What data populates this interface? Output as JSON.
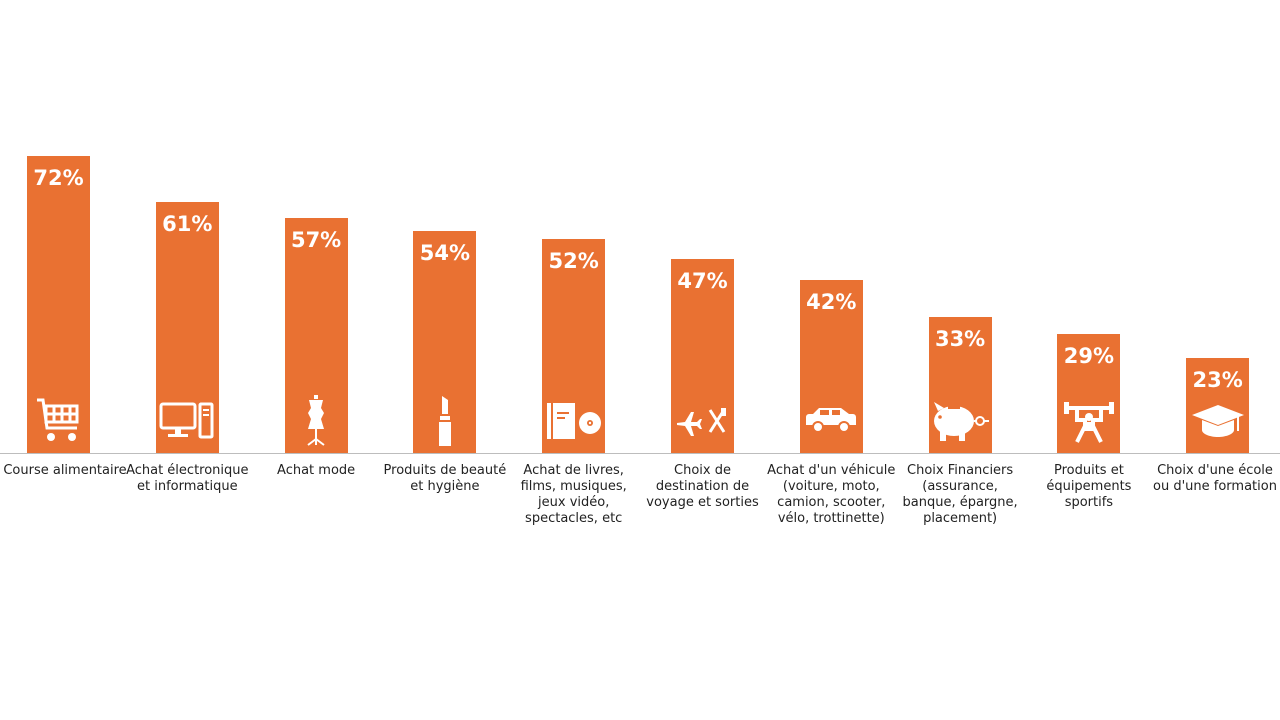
{
  "colors": {
    "bar": "#E97132",
    "axis": "#BDBDBD",
    "label_text": "#222222",
    "value_text": "#FFFFFF"
  },
  "chart_data": {
    "type": "bar",
    "title": "",
    "xlabel": "",
    "ylabel": "",
    "ylim": [
      0,
      100
    ],
    "grid": false,
    "legend": "none",
    "categories": [
      "Course alimentaire",
      "Achat électronique et informatique",
      "Achat  mode",
      "Produits de beauté et hygiène",
      "Achat  de livres, films, musiques, jeux vidéo, spectacles, etc",
      "Choix de destination de voyage et sorties",
      "Achat d'un véhicule (voiture, moto, camion, scooter, vélo, trottinette)",
      "Choix Financiers (assurance, banque, épargne, placement)",
      "Produits et équipements sportifs",
      "Choix d'une école ou d'une formation"
    ],
    "values": [
      72,
      61,
      57,
      54,
      52,
      47,
      42,
      33,
      29,
      23
    ],
    "value_labels": [
      "72%",
      "61%",
      "57%",
      "54%",
      "52%",
      "47%",
      "42%",
      "33%",
      "29%",
      "23%"
    ],
    "icons": [
      "shopping-cart-icon",
      "computer-icon",
      "mannequin-icon",
      "lipstick-icon",
      "book-and-disc-icon",
      "plane-and-cutlery-icon",
      "car-icon",
      "piggy-bank-icon",
      "weightlifter-icon",
      "graduation-cap-icon"
    ]
  }
}
